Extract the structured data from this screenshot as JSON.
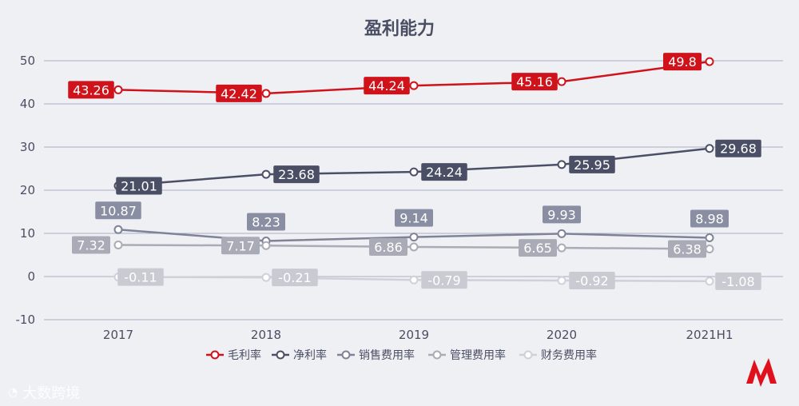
{
  "chart_data": {
    "type": "line",
    "title": "盈利能力",
    "categories": [
      "2017",
      "2018",
      "2019",
      "2020",
      "2021H1"
    ],
    "ylim": [
      -10,
      50
    ],
    "yticks": [
      -10,
      0,
      10,
      20,
      30,
      40,
      50
    ],
    "grid": true,
    "legend_position": "bottom",
    "series": [
      {
        "name": "毛利率",
        "values": [
          43.26,
          42.42,
          44.24,
          45.16,
          49.8
        ],
        "labels": [
          "43.26",
          "42.42",
          "44.24",
          "45.16",
          "49.8"
        ],
        "color": "#d0121b",
        "label_fill": "#d0121b",
        "label_text": "#ffffff"
      },
      {
        "name": "净利率",
        "values": [
          21.01,
          23.68,
          24.24,
          25.95,
          29.68
        ],
        "labels": [
          "21.01",
          "23.68",
          "24.24",
          "25.95",
          "29.68"
        ],
        "color": "#4b4f66",
        "label_fill": "#4b4f66",
        "label_text": "#ffffff"
      },
      {
        "name": "销售费用率",
        "values": [
          10.87,
          8.23,
          9.14,
          9.93,
          8.98
        ],
        "labels": [
          "10.87",
          "8.23",
          "9.14",
          "9.93",
          "8.98"
        ],
        "color": "#7f8398",
        "label_fill": "#8a8ea2",
        "label_text": "#ffffff"
      },
      {
        "name": "管理费用率",
        "values": [
          7.32,
          7.17,
          6.86,
          6.65,
          6.38
        ],
        "labels": [
          "7.32",
          "7.17",
          "6.86",
          "6.65",
          "6.38"
        ],
        "color": "#a9abb6",
        "label_fill": "#a9abb6",
        "label_text": "#ffffff"
      },
      {
        "name": "财务费用率",
        "values": [
          -0.11,
          -0.21,
          -0.79,
          -0.92,
          -1.08
        ],
        "labels": [
          "-0.11",
          "-0.21",
          "-0.79",
          "-0.92",
          "-1.08"
        ],
        "color": "#cfd1d8",
        "label_fill": "#c9cbd3",
        "label_text": "#ffffff"
      }
    ]
  },
  "watermark": {
    "text": "大数跨境"
  },
  "colors": {
    "axis_text": "#4a4e63",
    "grid": "#aab0c4",
    "background": "#eef0f4",
    "logo_red": "#e0101c"
  }
}
